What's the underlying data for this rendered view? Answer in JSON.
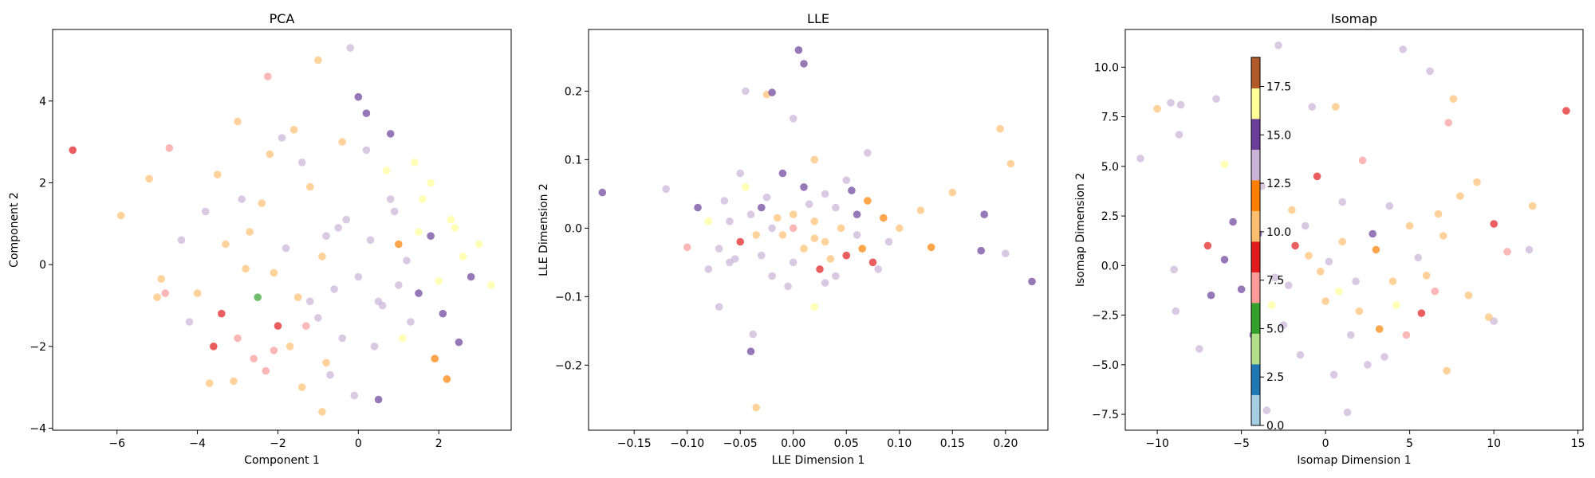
{
  "figure": {
    "colorbar": {
      "ticks": [
        "0.0",
        "2.5",
        "5.0",
        "7.5",
        "10.0",
        "12.5",
        "15.0",
        "17.5"
      ],
      "range": [
        0,
        19
      ],
      "colormap": "Paired",
      "colors": [
        "#a6cee3",
        "#1f78b4",
        "#b2df8a",
        "#33a02c",
        "#fb9a99",
        "#e31a1c",
        "#fdbf6f",
        "#ff7f00",
        "#cab2d6",
        "#6a3d9a",
        "#ffff99",
        "#b15928"
      ]
    }
  },
  "chart_data": [
    {
      "type": "scatter",
      "title": "PCA",
      "xlabel": "Component 1",
      "ylabel": "Component 2",
      "xlim": [
        -7.6,
        3.8
      ],
      "ylim": [
        -4.05,
        5.75
      ],
      "xticks": [
        -6,
        -4,
        -2,
        0,
        2
      ],
      "yticks": [
        -4,
        -2,
        0,
        2,
        4
      ],
      "xtick_labels": [
        "−6",
        "−4",
        "−2",
        "0",
        "2"
      ],
      "ytick_labels": [
        "−4",
        "−2",
        "0",
        "2",
        "4"
      ],
      "grid": false,
      "point_alpha": 0.7,
      "points": [
        [
          -7.1,
          2.8,
          9
        ],
        [
          -5.9,
          1.2,
          11
        ],
        [
          -5.2,
          2.1,
          11
        ],
        [
          -4.9,
          -0.35,
          11
        ],
        [
          -5.0,
          -0.8,
          11
        ],
        [
          -4.8,
          -0.7,
          7
        ],
        [
          -4.7,
          2.85,
          7
        ],
        [
          -4.4,
          0.6,
          13
        ],
        [
          -4.0,
          -0.7,
          11
        ],
        [
          -3.7,
          -2.9,
          11
        ],
        [
          -3.4,
          -1.2,
          9
        ],
        [
          -3.1,
          -2.85,
          11
        ],
        [
          -3.0,
          3.5,
          11
        ],
        [
          -2.9,
          1.6,
          13
        ],
        [
          -2.8,
          -0.1,
          11
        ],
        [
          -2.6,
          -2.3,
          7
        ],
        [
          -2.5,
          -0.8,
          6
        ],
        [
          -2.3,
          -2.6,
          7
        ],
        [
          -2.25,
          4.6,
          7
        ],
        [
          -2.1,
          -2.1,
          7
        ],
        [
          -1.9,
          3.1,
          13
        ],
        [
          -1.6,
          3.3,
          11
        ],
        [
          -1.4,
          -3.0,
          11
        ],
        [
          -1.3,
          -1.5,
          7
        ],
        [
          -1.2,
          -0.9,
          13
        ],
        [
          -1.0,
          5.0,
          11
        ],
        [
          -0.9,
          -3.6,
          11
        ],
        [
          -0.8,
          -2.4,
          11
        ],
        [
          -0.4,
          -1.8,
          13
        ],
        [
          -0.2,
          5.3,
          13
        ],
        [
          0.0,
          4.1,
          15
        ],
        [
          0.2,
          3.7,
          15
        ],
        [
          0.5,
          -3.3,
          15
        ],
        [
          0.8,
          1.6,
          13
        ],
        [
          1.0,
          -0.5,
          13
        ],
        [
          1.3,
          -1.4,
          14
        ],
        [
          1.5,
          0.8,
          16
        ],
        [
          1.8,
          2.0,
          16
        ],
        [
          2.0,
          -0.4,
          16
        ],
        [
          2.2,
          -2.8,
          12
        ],
        [
          2.4,
          0.9,
          16
        ],
        [
          2.6,
          0.2,
          16
        ],
        [
          2.8,
          -0.3,
          15
        ],
        [
          3.0,
          0.5,
          17
        ],
        [
          3.3,
          -0.5,
          17
        ],
        [
          -3.5,
          2.2,
          11
        ],
        [
          -3.3,
          0.5,
          11
        ],
        [
          -3.0,
          -1.8,
          7
        ],
        [
          -2.7,
          0.8,
          11
        ],
        [
          -2.4,
          1.5,
          11
        ],
        [
          -2.1,
          -0.2,
          11
        ],
        [
          -1.8,
          0.4,
          13
        ],
        [
          -1.5,
          -0.8,
          11
        ],
        [
          -1.2,
          1.9,
          11
        ],
        [
          -0.9,
          0.2,
          11
        ],
        [
          -0.6,
          -0.6,
          13
        ],
        [
          -0.3,
          1.1,
          14
        ],
        [
          0.0,
          -0.3,
          14
        ],
        [
          0.3,
          0.6,
          14
        ],
        [
          0.6,
          -1.0,
          14
        ],
        [
          0.9,
          1.3,
          14
        ],
        [
          1.2,
          0.1,
          14
        ],
        [
          1.5,
          -0.7,
          15
        ],
        [
          1.8,
          0.7,
          15
        ],
        [
          2.1,
          -1.2,
          15
        ],
        [
          -1.0,
          -1.3,
          14
        ],
        [
          -0.5,
          0.9,
          14
        ],
        [
          0.4,
          -2.0,
          13
        ],
        [
          0.7,
          2.3,
          16
        ],
        [
          1.1,
          -1.8,
          16
        ],
        [
          1.6,
          1.6,
          16
        ],
        [
          2.3,
          1.1,
          17
        ],
        [
          -2.0,
          -1.5,
          9
        ],
        [
          -1.4,
          2.5,
          13
        ],
        [
          -0.7,
          -2.7,
          13
        ],
        [
          0.2,
          2.8,
          13
        ],
        [
          1.4,
          2.5,
          16
        ],
        [
          2.5,
          -1.9,
          15
        ],
        [
          -3.8,
          1.3,
          13
        ],
        [
          -4.2,
          -1.4,
          13
        ],
        [
          -3.6,
          -2.0,
          9
        ],
        [
          -2.2,
          2.7,
          11
        ],
        [
          -1.7,
          -2.0,
          11
        ],
        [
          -0.4,
          3.0,
          11
        ],
        [
          1.9,
          -2.3,
          12
        ],
        [
          0.8,
          3.2,
          15
        ],
        [
          -0.1,
          -3.2,
          13
        ],
        [
          1.0,
          0.5,
          12
        ],
        [
          -0.8,
          0.7,
          14
        ],
        [
          0.5,
          -0.9,
          14
        ]
      ]
    },
    {
      "type": "scatter",
      "title": "LLE",
      "xlabel": "LLE Dimension 1",
      "ylabel": "LLE Dimension 2",
      "xlim": [
        -0.193,
        0.24
      ],
      "ylim": [
        -0.295,
        0.29
      ],
      "xticks": [
        -0.15,
        -0.1,
        -0.05,
        0.0,
        0.05,
        0.1,
        0.15,
        0.2
      ],
      "yticks": [
        -0.2,
        -0.1,
        0.0,
        0.1,
        0.2
      ],
      "xtick_labels": [
        "−0.15",
        "−0.10",
        "−0.05",
        "0.00",
        "0.05",
        "0.10",
        "0.15",
        "0.20"
      ],
      "ytick_labels": [
        "−0.2",
        "−0.1",
        "0.0",
        "0.1",
        "0.2"
      ],
      "grid": false,
      "point_alpha": 0.7,
      "points": [
        [
          -0.18,
          0.052,
          15
        ],
        [
          -0.12,
          0.057,
          14
        ],
        [
          -0.1,
          -0.028,
          7
        ],
        [
          -0.07,
          -0.115,
          14
        ],
        [
          -0.045,
          0.2,
          13
        ],
        [
          -0.04,
          -0.18,
          15
        ],
        [
          -0.038,
          -0.155,
          13
        ],
        [
          -0.035,
          -0.262,
          11
        ],
        [
          -0.025,
          0.195,
          11
        ],
        [
          -0.02,
          0.198,
          15
        ],
        [
          0.0,
          0.16,
          13
        ],
        [
          0.005,
          0.26,
          15
        ],
        [
          0.01,
          0.24,
          15
        ],
        [
          0.02,
          0.1,
          11
        ],
        [
          0.05,
          0.07,
          14
        ],
        [
          0.07,
          0.11,
          13
        ],
        [
          0.09,
          -0.02,
          14
        ],
        [
          0.12,
          0.026,
          11
        ],
        [
          0.15,
          0.052,
          11
        ],
        [
          0.18,
          0.02,
          15
        ],
        [
          0.195,
          0.145,
          10
        ],
        [
          0.205,
          0.094,
          10
        ],
        [
          0.2,
          -0.037,
          13
        ],
        [
          0.225,
          -0.078,
          15
        ],
        [
          0.177,
          -0.033,
          15
        ],
        [
          0.13,
          -0.028,
          12
        ],
        [
          0.02,
          -0.115,
          16
        ],
        [
          0.04,
          -0.07,
          13
        ],
        [
          -0.05,
          0.08,
          14
        ],
        [
          -0.06,
          -0.05,
          13
        ],
        [
          -0.08,
          0.01,
          16
        ],
        [
          -0.03,
          0.03,
          15
        ],
        [
          -0.01,
          -0.01,
          11
        ],
        [
          0.0,
          0.02,
          11
        ],
        [
          0.01,
          -0.03,
          11
        ],
        [
          0.02,
          0.01,
          11
        ],
        [
          0.03,
          -0.02,
          11
        ],
        [
          -0.02,
          0.0,
          14
        ],
        [
          -0.04,
          0.02,
          14
        ],
        [
          0.04,
          0.03,
          14
        ],
        [
          0.06,
          -0.01,
          14
        ],
        [
          -0.06,
          0.01,
          14
        ],
        [
          0.0,
          -0.05,
          13
        ],
        [
          0.03,
          0.05,
          13
        ],
        [
          -0.03,
          -0.04,
          13
        ],
        [
          0.05,
          -0.04,
          9
        ],
        [
          -0.05,
          -0.02,
          9
        ],
        [
          0.01,
          0.06,
          15
        ],
        [
          -0.01,
          0.08,
          15
        ],
        [
          0.07,
          0.04,
          12
        ],
        [
          -0.07,
          -0.03,
          13
        ],
        [
          0.08,
          -0.06,
          13
        ],
        [
          -0.09,
          0.03,
          15
        ],
        [
          0.1,
          0.0,
          10
        ],
        [
          0.03,
          -0.08,
          13
        ],
        [
          -0.02,
          -0.07,
          13
        ],
        [
          0.06,
          0.02,
          15
        ],
        [
          -0.08,
          -0.06,
          14
        ],
        [
          0.0,
          0.0,
          7
        ],
        [
          0.02,
          -0.015,
          11
        ],
        [
          -0.015,
          0.015,
          11
        ],
        [
          0.045,
          0.0,
          11
        ],
        [
          -0.035,
          -0.01,
          11
        ],
        [
          0.015,
          0.035,
          14
        ],
        [
          -0.025,
          0.045,
          13
        ],
        [
          0.055,
          0.055,
          15
        ],
        [
          -0.045,
          0.06,
          16
        ],
        [
          0.065,
          -0.03,
          12
        ],
        [
          0.035,
          -0.045,
          11
        ],
        [
          -0.055,
          -0.045,
          14
        ],
        [
          0.025,
          -0.06,
          9
        ],
        [
          -0.005,
          -0.085,
          13
        ],
        [
          0.085,
          0.015,
          12
        ],
        [
          -0.065,
          0.04,
          13
        ],
        [
          0.075,
          -0.05,
          9
        ]
      ]
    },
    {
      "type": "scatter",
      "title": "Isomap",
      "xlabel": "Isomap Dimension 1",
      "ylabel": "Isomap Dimension 2",
      "xlim": [
        -11.9,
        15.3
      ],
      "ylim": [
        -8.3,
        11.9
      ],
      "xticks": [
        -10,
        -5,
        0,
        5,
        10,
        15
      ],
      "yticks": [
        -7.5,
        -5.0,
        -2.5,
        0.0,
        2.5,
        5.0,
        7.5,
        10.0
      ],
      "xtick_labels": [
        "−10",
        "−5",
        "0",
        "5",
        "10",
        "15"
      ],
      "ytick_labels": [
        "−7.5",
        "−5.0",
        "−2.5",
        "0.0",
        "2.5",
        "5.0",
        "7.5",
        "10.0"
      ],
      "grid": false,
      "point_alpha": 0.7,
      "points": [
        [
          -11.0,
          5.4,
          13
        ],
        [
          -10.0,
          7.9,
          11
        ],
        [
          -9.2,
          8.2,
          13
        ],
        [
          -8.6,
          8.1,
          13
        ],
        [
          -8.7,
          6.6,
          13
        ],
        [
          -6.5,
          8.4,
          13
        ],
        [
          -6.0,
          5.1,
          17
        ],
        [
          -2.8,
          11.1,
          13
        ],
        [
          -0.8,
          8.0,
          13
        ],
        [
          0.6,
          8.0,
          11
        ],
        [
          4.6,
          10.9,
          13
        ],
        [
          6.2,
          9.8,
          13
        ],
        [
          7.6,
          8.4,
          11
        ],
        [
          7.3,
          7.2,
          7
        ],
        [
          14.3,
          7.8,
          9
        ],
        [
          12.3,
          3.0,
          11
        ],
        [
          10.8,
          0.7,
          7
        ],
        [
          12.1,
          0.8,
          13
        ],
        [
          10.0,
          -2.8,
          13
        ],
        [
          9.7,
          -2.6,
          11
        ],
        [
          8.5,
          -1.5,
          11
        ],
        [
          6.5,
          -1.3,
          7
        ],
        [
          7.2,
          -5.3,
          11
        ],
        [
          5.7,
          -2.4,
          9
        ],
        [
          4.8,
          -3.5,
          7
        ],
        [
          3.5,
          -4.6,
          13
        ],
        [
          1.3,
          -7.4,
          13
        ],
        [
          -3.5,
          -7.3,
          13
        ],
        [
          -7.5,
          -4.2,
          13
        ],
        [
          -8.9,
          -2.3,
          13
        ],
        [
          -9.0,
          -0.2,
          13
        ],
        [
          -7.0,
          1.0,
          9
        ],
        [
          -6.0,
          0.3,
          15
        ],
        [
          -5.0,
          -1.2,
          15
        ],
        [
          -4.0,
          1.6,
          15
        ],
        [
          -3.0,
          -0.6,
          13
        ],
        [
          -2.0,
          2.8,
          11
        ],
        [
          -1.0,
          0.5,
          11
        ],
        [
          0.0,
          -1.8,
          11
        ],
        [
          1.0,
          1.2,
          11
        ],
        [
          2.0,
          -2.3,
          11
        ],
        [
          3.0,
          0.8,
          12
        ],
        [
          4.0,
          -0.8,
          11
        ],
        [
          5.0,
          2.0,
          11
        ],
        [
          6.0,
          -0.5,
          11
        ],
        [
          7.0,
          1.5,
          11
        ],
        [
          8.0,
          3.5,
          11
        ],
        [
          9.0,
          4.2,
          11
        ],
        [
          10.0,
          2.1,
          9
        ],
        [
          -2.5,
          -3.0,
          14
        ],
        [
          -1.5,
          -4.5,
          14
        ],
        [
          0.5,
          -5.5,
          14
        ],
        [
          1.5,
          -3.5,
          14
        ],
        [
          2.5,
          -5.0,
          13
        ],
        [
          -0.5,
          4.5,
          9
        ],
        [
          1.0,
          3.2,
          13
        ],
        [
          2.2,
          5.3,
          7
        ],
        [
          -3.8,
          4.0,
          13
        ],
        [
          -5.5,
          2.2,
          15
        ],
        [
          -6.8,
          -1.5,
          15
        ],
        [
          3.8,
          3.0,
          13
        ],
        [
          5.5,
          0.4,
          13
        ],
        [
          -2.2,
          -1.0,
          14
        ],
        [
          0.2,
          0.2,
          14
        ],
        [
          -1.2,
          2.0,
          14
        ],
        [
          1.8,
          -0.8,
          14
        ],
        [
          -0.3,
          -0.3,
          10
        ],
        [
          0.8,
          -1.3,
          17
        ],
        [
          -1.8,
          1.0,
          9
        ],
        [
          2.8,
          1.6,
          15
        ],
        [
          -3.2,
          -2.0,
          16
        ],
        [
          4.2,
          -2.0,
          16
        ],
        [
          3.2,
          -3.2,
          12
        ],
        [
          -4.3,
          -3.5,
          15
        ],
        [
          6.7,
          2.6,
          10
        ]
      ]
    }
  ]
}
